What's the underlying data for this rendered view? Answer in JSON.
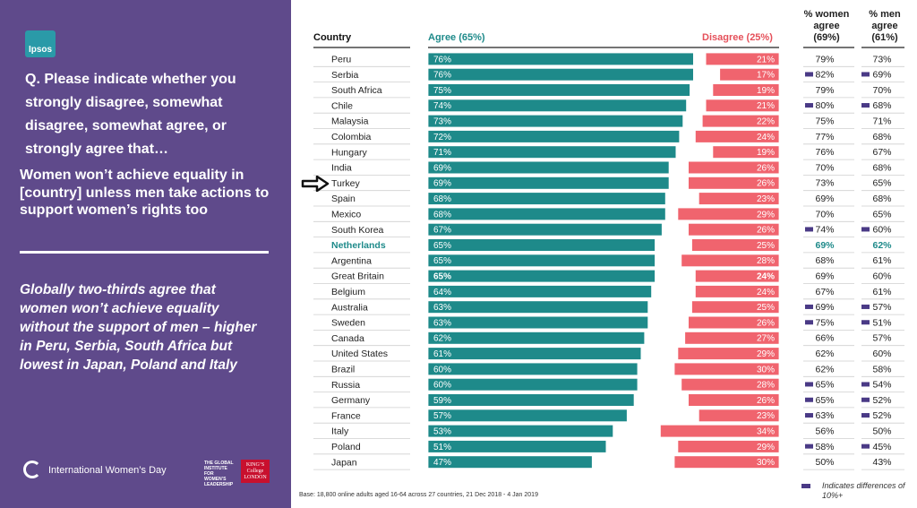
{
  "brand": {
    "logo": "Ipsos"
  },
  "panel": {
    "question": "Q. Please indicate whether you strongly disagree, somewhat disagree, somewhat agree, or strongly agree that…",
    "statement": "Women won’t achieve equality in [country] unless men take actions to support women’s rights too",
    "summary": "Globally two-thirds agree that women won’t achieve equality without the support of men – higher in Peru, Serbia, South Africa but lowest in Japan, Poland and Italy",
    "footer_iwd": "International Women’s Day",
    "footer_gi": "THE GLOBAL INSTITUTE FOR WOMEN’S LEADERSHIP",
    "footer_kcl": "KING’S College LONDON"
  },
  "headers": {
    "country": "Country",
    "agree": "Agree (65%)",
    "disagree": "Disagree (25%)",
    "women": "% women agree (69%)",
    "men": "% men agree (61%)"
  },
  "notes": {
    "base": "Base: 18,800 online adults aged 16-64 across 27 countries,  21 Dec 2018 - 4 Jan  2019",
    "legend": "Indicates differences of 10%+"
  },
  "colors": {
    "agree": "#1e8a8a",
    "disagree": "#f0646e",
    "panel": "#5f4a8b",
    "marker": "#4a3a86",
    "highlight": "#1e8a8a"
  },
  "icons": {
    "arrow": "right-arrow-icon"
  },
  "chart_data": {
    "type": "bar",
    "categories": [
      "Peru",
      "Serbia",
      "South Africa",
      "Chile",
      "Malaysia",
      "Colombia",
      "Hungary",
      "India",
      "Turkey",
      "Spain",
      "Mexico",
      "South Korea",
      "Netherlands",
      "Argentina",
      "Great Britain",
      "Belgium",
      "Australia",
      "Sweden",
      "Canada",
      "United States",
      "Brazil",
      "Russia",
      "Germany",
      "France",
      "Italy",
      "Poland",
      "Japan"
    ],
    "series": [
      {
        "name": "Agree (65%)",
        "values": [
          76,
          76,
          75,
          74,
          73,
          72,
          71,
          69,
          69,
          68,
          68,
          67,
          65,
          65,
          65,
          64,
          63,
          63,
          62,
          61,
          60,
          60,
          59,
          57,
          53,
          51,
          47
        ]
      },
      {
        "name": "Disagree (25%)",
        "values": [
          21,
          17,
          19,
          21,
          22,
          24,
          19,
          26,
          26,
          23,
          29,
          26,
          25,
          28,
          24,
          24,
          25,
          26,
          27,
          29,
          30,
          28,
          26,
          23,
          34,
          29,
          30
        ]
      },
      {
        "name": "% women agree (69%)",
        "values": [
          79,
          82,
          79,
          80,
          75,
          77,
          76,
          70,
          73,
          69,
          70,
          74,
          69,
          68,
          69,
          67,
          69,
          75,
          66,
          62,
          62,
          65,
          65,
          63,
          56,
          58,
          50
        ]
      },
      {
        "name": "% men agree (61%)",
        "values": [
          73,
          69,
          70,
          68,
          71,
          68,
          67,
          68,
          65,
          68,
          65,
          60,
          62,
          61,
          60,
          61,
          57,
          51,
          57,
          60,
          58,
          54,
          52,
          52,
          50,
          45,
          43
        ]
      }
    ],
    "women_flag": [
      false,
      true,
      false,
      true,
      false,
      false,
      false,
      false,
      false,
      false,
      false,
      true,
      false,
      false,
      false,
      false,
      true,
      true,
      false,
      false,
      false,
      true,
      true,
      true,
      false,
      true,
      false
    ],
    "men_flag": [
      false,
      true,
      false,
      true,
      false,
      false,
      false,
      false,
      false,
      false,
      false,
      true,
      false,
      false,
      false,
      false,
      true,
      true,
      false,
      false,
      false,
      true,
      true,
      true,
      false,
      true,
      false
    ],
    "highlight_country": "Netherlands",
    "bold_label_country": "Great Britain",
    "arrow_country": "Turkey",
    "title": "",
    "xlabel": "",
    "ylabel": ""
  }
}
